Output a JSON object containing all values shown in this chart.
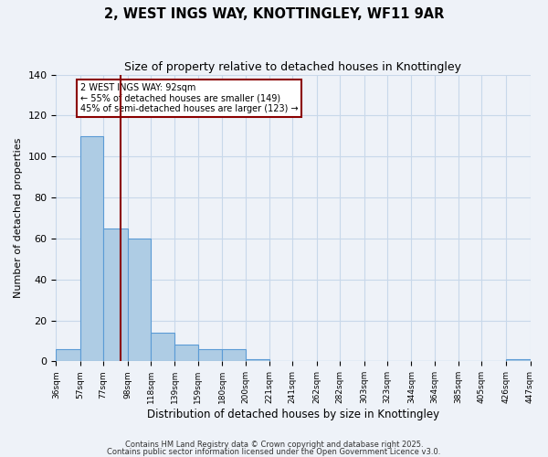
{
  "title": "2, WEST INGS WAY, KNOTTINGLEY, WF11 9AR",
  "subtitle": "Size of property relative to detached houses in Knottingley",
  "xlabel": "Distribution of detached houses by size in Knottingley",
  "ylabel": "Number of detached properties",
  "bar_edges": [
    36,
    57,
    77,
    98,
    118,
    139,
    159,
    180,
    200,
    221,
    241,
    262,
    282,
    303,
    323,
    344,
    364,
    385,
    405,
    426,
    447
  ],
  "bar_heights": [
    6,
    110,
    65,
    60,
    14,
    8,
    6,
    6,
    1,
    0,
    0,
    0,
    0,
    0,
    0,
    0,
    0,
    0,
    0,
    1
  ],
  "bar_color": "#aecce4",
  "bar_edge_color": "#5b9bd5",
  "property_line_x": 92,
  "property_line_color": "#8b0000",
  "ylim": [
    0,
    140
  ],
  "annotation_line1": "2 WEST INGS WAY: 92sqm",
  "annotation_line2": "← 55% of detached houses are smaller (149)",
  "annotation_line3": "45% of semi-detached houses are larger (123) →",
  "annotation_box_color": "white",
  "annotation_box_edge": "#8b0000",
  "footer1": "Contains HM Land Registry data © Crown copyright and database right 2025.",
  "footer2": "Contains public sector information licensed under the Open Government Licence v3.0.",
  "tick_labels": [
    "36sqm",
    "57sqm",
    "77sqm",
    "98sqm",
    "118sqm",
    "139sqm",
    "159sqm",
    "180sqm",
    "200sqm",
    "221sqm",
    "241sqm",
    "262sqm",
    "282sqm",
    "303sqm",
    "323sqm",
    "344sqm",
    "364sqm",
    "385sqm",
    "405sqm",
    "426sqm",
    "447sqm"
  ],
  "background_color": "#eef2f8",
  "grid_color": "#c8d8ea",
  "yticks": [
    0,
    20,
    40,
    60,
    80,
    100,
    120,
    140
  ]
}
